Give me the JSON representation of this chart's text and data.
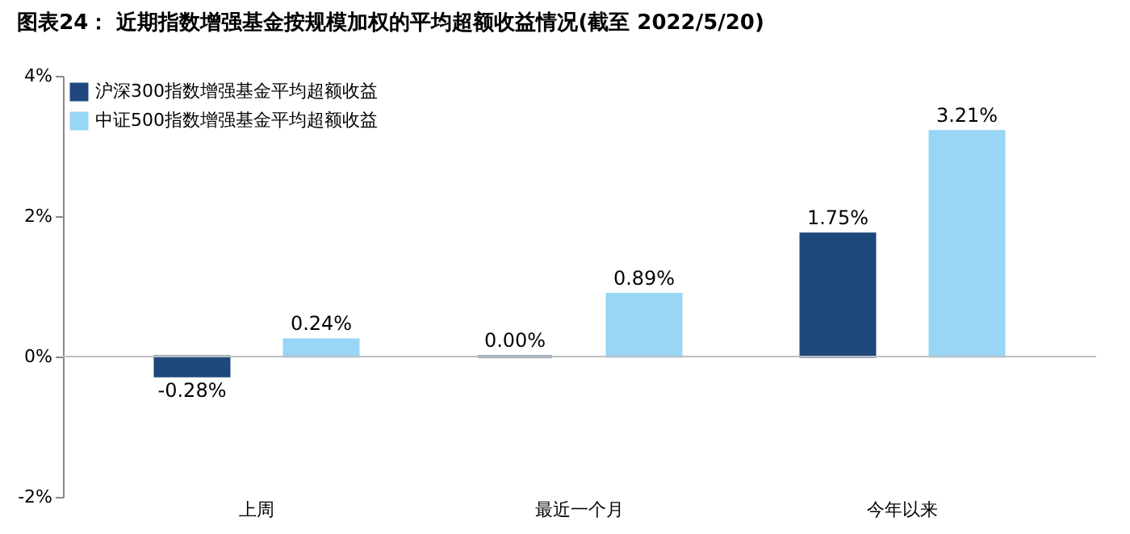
{
  "chart_data": {
    "type": "bar",
    "title": "图表24： 近期指数增强基金按规模加权的平均超额收益情况(截至 2022/5/20)",
    "categories": [
      "上周",
      "最近一个月",
      "今年以来"
    ],
    "series": [
      {
        "name": "沪深300指数增强基金平均超额收益",
        "color": "#1f497d",
        "values": [
          -0.28,
          0.0,
          1.75
        ],
        "value_labels": [
          "-0.28%",
          "0.00%",
          "1.75%"
        ]
      },
      {
        "name": "中证500指数增强基金平均超额收益",
        "color": "#99d5f5",
        "values": [
          0.24,
          0.89,
          3.21
        ],
        "value_labels": [
          "0.24%",
          "0.89%",
          "3.21%"
        ]
      }
    ],
    "ylim": [
      -2,
      4
    ],
    "yticks": [
      {
        "value": -2,
        "label": "-2%"
      },
      {
        "value": 0,
        "label": "0%"
      },
      {
        "value": 2,
        "label": "2%"
      },
      {
        "value": 4,
        "label": "4%"
      }
    ],
    "ref_lines": [
      {
        "axis": "y",
        "value": 0,
        "color": "#bfbfbf"
      }
    ],
    "grid": false,
    "legend": "top left"
  }
}
